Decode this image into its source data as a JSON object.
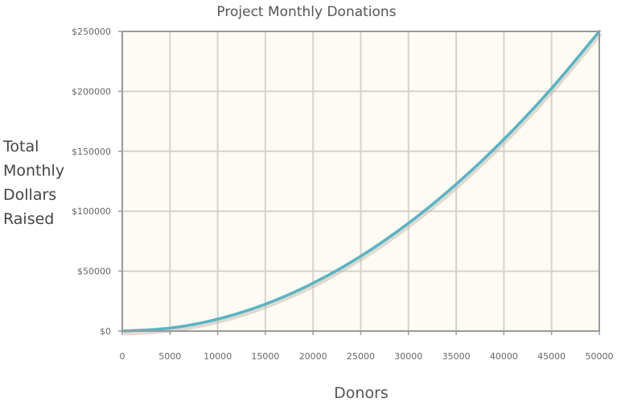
{
  "chart_data": {
    "type": "line",
    "title": "Project Monthly Donations",
    "xlabel": "Donors",
    "ylabel_lines": [
      "Total",
      "Monthly",
      "Dollars",
      "Raised"
    ],
    "xlim": [
      0,
      50000
    ],
    "ylim": [
      0,
      250000
    ],
    "x_ticks": [
      0,
      5000,
      10000,
      15000,
      20000,
      25000,
      30000,
      35000,
      40000,
      45000,
      50000
    ],
    "x_tick_labels": [
      "0",
      "5000",
      "10000",
      "15000",
      "20000",
      "25000",
      "30000",
      "35000",
      "40000",
      "45000",
      "50000"
    ],
    "y_ticks": [
      0,
      50000,
      100000,
      150000,
      200000,
      250000
    ],
    "y_tick_labels": [
      "$0",
      "$50000",
      "$100000",
      "$150000",
      "$200000",
      "$250000"
    ],
    "grid": true,
    "series": [
      {
        "color": "#5bb3c4",
        "x": [
          0,
          5000,
          10000,
          15000,
          20000,
          25000,
          30000,
          35000,
          40000,
          45000,
          50000
        ],
        "y": [
          0,
          2500,
          10000,
          22500,
          40000,
          62500,
          90000,
          122500,
          160000,
          202500,
          250000
        ]
      }
    ],
    "colors": {
      "plot_background": "#fdfbf3",
      "line": "#5bb3c4",
      "shadow": "#b9b2a6"
    }
  }
}
